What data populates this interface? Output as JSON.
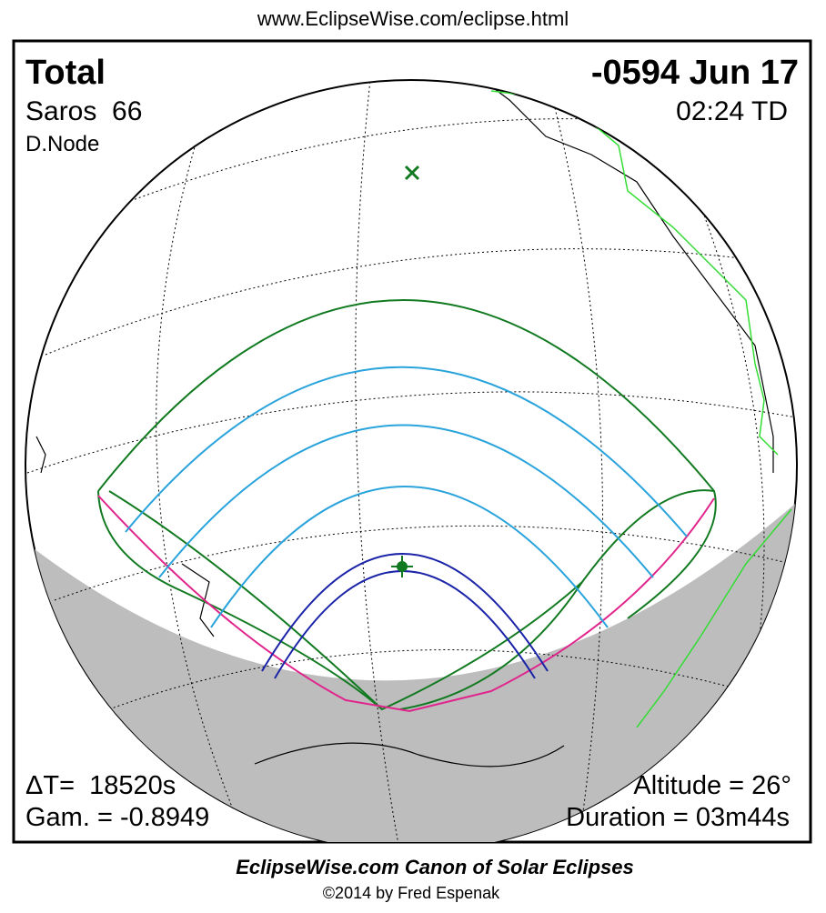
{
  "header": {
    "url": "www.EclipseWise.com/eclipse.html"
  },
  "map": {
    "top_left": {
      "type": "Total",
      "saros": "Saros  66",
      "node": "D.Node"
    },
    "top_right": {
      "date": "-0594 Jun 17",
      "time": "02:24 TD"
    },
    "bottom_left": {
      "delta_t": "ΔT=  18520s",
      "gamma": "Gam. = -0.8949"
    },
    "bottom_right": {
      "altitude": "Altitude = 26°",
      "duration": "Duration = 03m44s"
    }
  },
  "footer": {
    "title": "EclipseWise.com Canon of Solar Eclipses",
    "copyright": "©2014 by Fred Espenak"
  }
}
